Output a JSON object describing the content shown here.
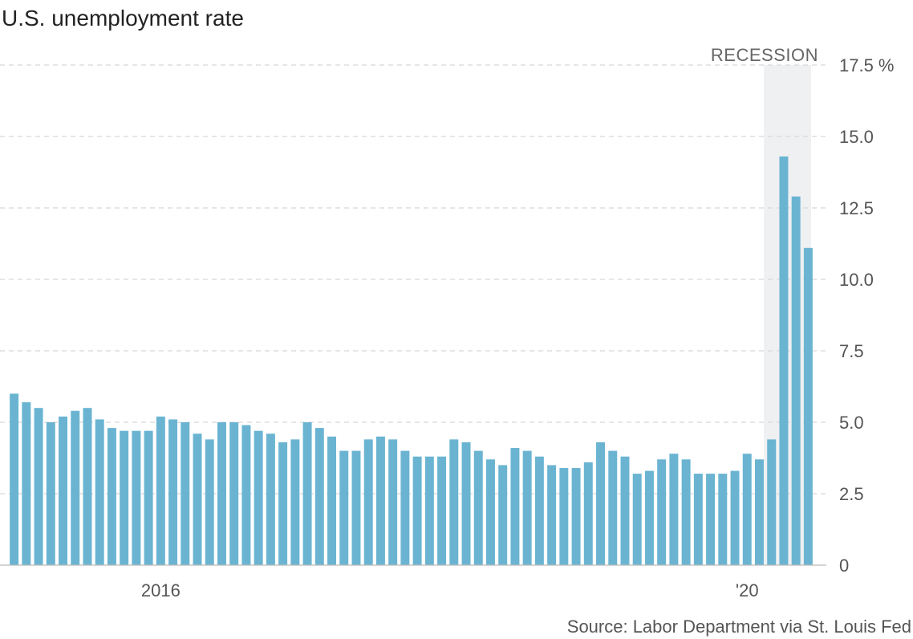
{
  "chart_data": {
    "type": "bar",
    "title": "U.S. unemployment rate",
    "source": "Source: Labor Department via St. Louis Fed",
    "bar_color": "#6ab4d2",
    "recession_color": "#eef0f2",
    "recession_label": "RECESSION",
    "ylim": [
      0,
      17.5
    ],
    "y_ticks": [
      {
        "value": 0,
        "label": "0"
      },
      {
        "value": 2.5,
        "label": "2.5"
      },
      {
        "value": 5.0,
        "label": "5.0"
      },
      {
        "value": 7.5,
        "label": "7.5"
      },
      {
        "value": 10.0,
        "label": "10.0"
      },
      {
        "value": 12.5,
        "label": "12.5"
      },
      {
        "value": 15.0,
        "label": "15.0"
      },
      {
        "value": 17.5,
        "label": "17.5 %"
      }
    ],
    "categories": [
      "2015-01",
      "2015-02",
      "2015-03",
      "2015-04",
      "2015-05",
      "2015-06",
      "2015-07",
      "2015-08",
      "2015-09",
      "2015-10",
      "2015-11",
      "2015-12",
      "2016-01",
      "2016-02",
      "2016-03",
      "2016-04",
      "2016-05",
      "2016-06",
      "2016-07",
      "2016-08",
      "2016-09",
      "2016-10",
      "2016-11",
      "2016-12",
      "2017-01",
      "2017-02",
      "2017-03",
      "2017-04",
      "2017-05",
      "2017-06",
      "2017-07",
      "2017-08",
      "2017-09",
      "2017-10",
      "2017-11",
      "2017-12",
      "2018-01",
      "2018-02",
      "2018-03",
      "2018-04",
      "2018-05",
      "2018-06",
      "2018-07",
      "2018-08",
      "2018-09",
      "2018-10",
      "2018-11",
      "2018-12",
      "2019-01",
      "2019-02",
      "2019-03",
      "2019-04",
      "2019-05",
      "2019-06",
      "2019-07",
      "2019-08",
      "2019-09",
      "2019-10",
      "2019-11",
      "2019-12",
      "2020-01",
      "2020-02",
      "2020-03",
      "2020-04",
      "2020-05",
      "2020-06"
    ],
    "values": [
      6.0,
      5.7,
      5.5,
      5.0,
      5.2,
      5.4,
      5.5,
      5.1,
      4.8,
      4.7,
      4.7,
      4.7,
      5.2,
      5.1,
      5.0,
      4.6,
      4.4,
      5.0,
      5.0,
      4.9,
      4.7,
      4.6,
      4.3,
      4.4,
      5.0,
      4.8,
      4.5,
      4.0,
      4.0,
      4.4,
      4.5,
      4.4,
      4.0,
      3.8,
      3.8,
      3.8,
      4.4,
      4.3,
      4.0,
      3.7,
      3.5,
      4.1,
      4.0,
      3.8,
      3.5,
      3.4,
      3.4,
      3.6,
      4.3,
      4.0,
      3.8,
      3.2,
      3.3,
      3.7,
      3.9,
      3.7,
      3.2,
      3.2,
      3.2,
      3.3,
      3.9,
      3.7,
      4.4,
      14.3,
      12.9,
      11.1
    ],
    "x_ticks": [
      {
        "category": "2016-01",
        "label": "2016"
      },
      {
        "category": "2020-01",
        "label": "'20"
      }
    ],
    "recession": {
      "start": "2020-03",
      "end": "2020-06"
    }
  }
}
